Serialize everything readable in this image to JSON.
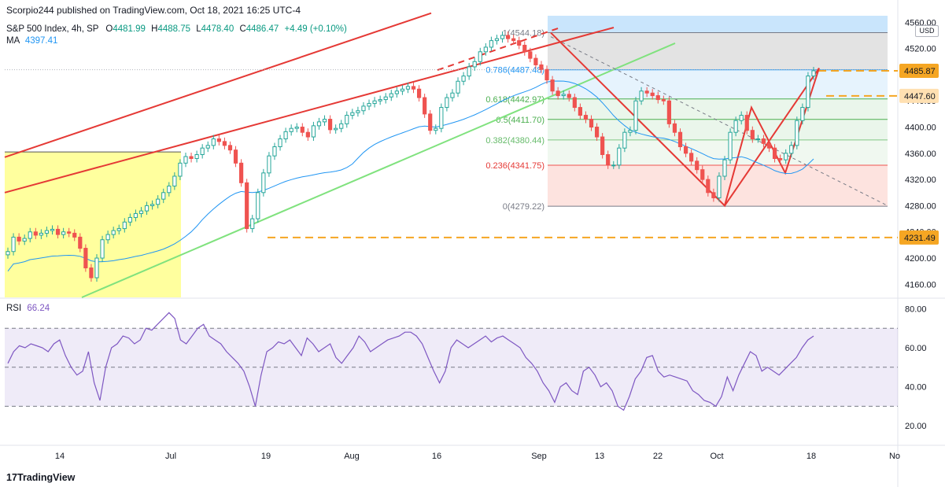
{
  "header": {
    "published": "Scorpio244 published on TradingView.com, Oct 18, 2021 16:25 UTC-4",
    "symbol": "S&P 500 Index, 4h, SP",
    "ohlc": {
      "o_label": "O",
      "o": "4481.99",
      "h_label": "H",
      "h": "4488.75",
      "l_label": "L",
      "l": "4478.40",
      "c_label": "C",
      "c": "4486.47",
      "change": "+4.49 (+0.10%)"
    },
    "ma_label": "MA",
    "ma_value": "4397.41",
    "rsi_label": "RSI",
    "rsi_value": "66.24",
    "currency": "USD"
  },
  "footer": {
    "brand": "TradingView"
  },
  "colors": {
    "up": "#26a69a",
    "down": "#ef5350",
    "ma": "#2196f3",
    "rsi": "#7e57c2",
    "channel": "#e53935",
    "green_line": "#80e27e",
    "orange": "#f5a623",
    "yellow_box": "#ffff8d",
    "fib_blue_bg": "#bbdefb",
    "fib_red": "#ef5350"
  },
  "chart_data": [
    {
      "type": "line",
      "title": "S&P 500 Index, 4h",
      "ylim": [
        4140,
        4570
      ],
      "yticks": [
        "4560.00",
        "4520.00",
        "4480.00",
        "4440.00",
        "4400.00",
        "4360.00",
        "4320.00",
        "4280.00",
        "4240.00",
        "4200.00",
        "4160.00"
      ],
      "xticks": [
        "14",
        "Jul",
        "19",
        "Aug",
        "16",
        "Sep",
        "13",
        "22",
        "Oct",
        "18",
        "No"
      ],
      "price_labels": [
        {
          "text": "4485.87",
          "value": 4485.87,
          "style": "orange"
        },
        {
          "text": "4447.60",
          "value": 4447.6,
          "style": "orange-light"
        },
        {
          "text": "4231.49",
          "value": 4231.49,
          "style": "orange"
        }
      ],
      "series": [
        {
          "name": "Close",
          "values": [
            4210,
            4232,
            4226,
            4230,
            4240,
            4235,
            4238,
            4242,
            4244,
            4236,
            4240,
            4238,
            4232,
            4215,
            4185,
            4170,
            4200,
            4228,
            4236,
            4242,
            4245,
            4255,
            4262,
            4268,
            4272,
            4280,
            4282,
            4290,
            4300,
            4310,
            4325,
            4345,
            4355,
            4352,
            4358,
            4368,
            4372,
            4382,
            4378,
            4372,
            4365,
            4345,
            4315,
            4245,
            4260,
            4300,
            4330,
            4356,
            4370,
            4382,
            4393,
            4398,
            4400,
            4392,
            4385,
            4402,
            4408,
            4412,
            4396,
            4398,
            4405,
            4418,
            4422,
            4425,
            4432,
            4436,
            4440,
            4442,
            4446,
            4451,
            4455,
            4458,
            4462,
            4458,
            4445,
            4420,
            4395,
            4398,
            4430,
            4445,
            4452,
            4470,
            4478,
            4492,
            4500,
            4515,
            4522,
            4532,
            4535,
            4540,
            4535,
            4532,
            4525,
            4515,
            4505,
            4495,
            4488,
            4472,
            4455,
            4448,
            4450,
            4445,
            4430,
            4418,
            4412,
            4400,
            4385,
            4358,
            4342,
            4342,
            4368,
            4392,
            4395,
            4440,
            4455,
            4452,
            4448,
            4442,
            4440,
            4405,
            4392,
            4370,
            4360,
            4348,
            4335,
            4320,
            4300,
            4292,
            4325,
            4350,
            4392,
            4410,
            4418,
            4395,
            4382,
            4382,
            4375,
            4368,
            4352,
            4350,
            4360,
            4372,
            4410,
            4430,
            4478,
            4486
          ]
        }
      ]
    },
    {
      "type": "line",
      "title": "RSI 66.24",
      "ylim": [
        10,
        85
      ],
      "yticks": [
        "80.00",
        "60.00",
        "40.00",
        "20.00"
      ],
      "bands": [
        30,
        50,
        70
      ],
      "series": [
        {
          "name": "RSI",
          "values": [
            52,
            58,
            61,
            60,
            62,
            61,
            60,
            58,
            62,
            64,
            56,
            50,
            46,
            48,
            58,
            42,
            33,
            50,
            60,
            62,
            66,
            65,
            62,
            64,
            70,
            69,
            72,
            75,
            78,
            75,
            64,
            62,
            66,
            70,
            72,
            66,
            64,
            62,
            58,
            55,
            52,
            48,
            40,
            30,
            46,
            58,
            60,
            63,
            62,
            64,
            60,
            56,
            65,
            62,
            58,
            60,
            62,
            55,
            52,
            56,
            60,
            66,
            63,
            58,
            60,
            62,
            64,
            65,
            66,
            68,
            68,
            66,
            62,
            55,
            48,
            42,
            48,
            60,
            64,
            62,
            60,
            62,
            64,
            66,
            63,
            65,
            66,
            64,
            62,
            60,
            55,
            52,
            48,
            42,
            38,
            32,
            40,
            42,
            38,
            36,
            48,
            50,
            46,
            40,
            42,
            38,
            30,
            28,
            35,
            44,
            48,
            55,
            56,
            48,
            45,
            46,
            45,
            44,
            43,
            38,
            36,
            33,
            32,
            30,
            35,
            45,
            38,
            46,
            52,
            58,
            56,
            48,
            50,
            48,
            46,
            49,
            52,
            55,
            60,
            64,
            66
          ]
        }
      ]
    }
  ],
  "annotations": {
    "fib_levels": [
      {
        "label": "1(4544.18)",
        "value": 4544.18,
        "band_color": "#e0e0e0"
      },
      {
        "label": "0.786(4487.48)",
        "value": 4487.48,
        "band_color": "#e3f2fd"
      },
      {
        "label": "0.618(4442.97)",
        "value": 4442.97,
        "band_color": "#e8f5e9"
      },
      {
        "label": "0.5(4411.70)",
        "value": 4411.7,
        "band_color": "#e8f5e9"
      },
      {
        "label": "0.382(4380.44)",
        "value": 4380.44,
        "band_color": "#eef7ee"
      },
      {
        "label": "0.236(4341.75)",
        "value": 4341.75,
        "band_color": "#fde0dc"
      },
      {
        "label": "0(4279.22)",
        "value": 4279.22,
        "band_color": "#ffffff"
      }
    ]
  }
}
